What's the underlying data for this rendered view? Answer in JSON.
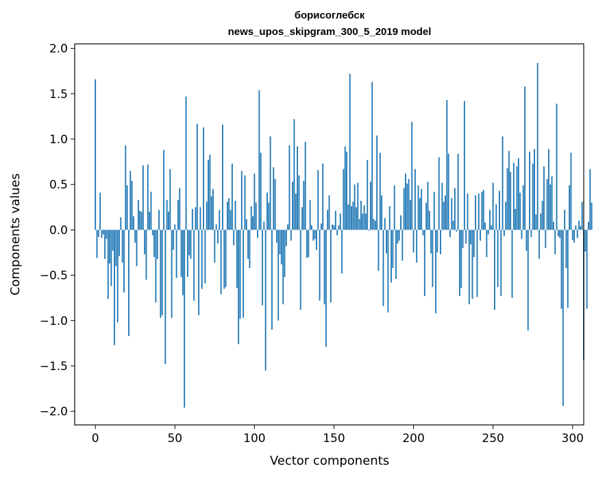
{
  "chart_data": {
    "type": "bar",
    "title_line1": "борисоглебск",
    "title_line2": "news_upos_skipgram_300_5_2019 model",
    "xlabel": "Vector components",
    "ylabel": "Components values",
    "xlim": [
      -13,
      307
    ],
    "ylim": [
      -2.15,
      2.05
    ],
    "xticks": [
      0,
      50,
      100,
      150,
      200,
      250,
      300
    ],
    "xtick_labels": [
      "0",
      "50",
      "100",
      "150",
      "200",
      "250",
      "300"
    ],
    "yticks": [
      -2.0,
      -1.5,
      -1.0,
      -0.5,
      0.0,
      0.5,
      1.0,
      1.5,
      2.0
    ],
    "ytick_labels": [
      "−2.0",
      "−1.5",
      "−1.0",
      "−0.5",
      "0.0",
      "0.5",
      "1.0",
      "1.5",
      "2.0"
    ],
    "bar_color": "#1f77b4",
    "grid": false,
    "values": [
      1.66,
      -0.31,
      -0.08,
      0.41,
      -0.09,
      -0.05,
      -0.32,
      -0.1,
      -0.76,
      -0.37,
      -0.62,
      -0.23,
      -1.27,
      -0.4,
      -1.02,
      -0.29,
      0.14,
      -0.36,
      -0.69,
      0.93,
      0.49,
      -1.17,
      0.65,
      0.54,
      0.15,
      -0.14,
      -0.4,
      0.33,
      0.21,
      0.2,
      0.71,
      -0.27,
      -0.55,
      0.72,
      0.2,
      0.42,
      -0.06,
      -0.3,
      -0.8,
      -0.32,
      0.22,
      -0.97,
      -0.94,
      0.88,
      -1.48,
      0.33,
      0.2,
      0.67,
      -0.97,
      -0.22,
      0.06,
      -0.53,
      0.33,
      0.46,
      -0.52,
      -0.72,
      -1.96,
      1.47,
      -0.52,
      -0.28,
      -0.32,
      0.23,
      -0.78,
      0.25,
      1.17,
      -0.94,
      0.25,
      -0.65,
      1.13,
      -0.59,
      0.31,
      0.77,
      0.83,
      0.37,
      0.45,
      -0.36,
      0.06,
      -0.15,
      0.22,
      -0.71,
      1.16,
      -0.65,
      -0.63,
      0.31,
      0.35,
      0.22,
      0.73,
      -0.17,
      0.32,
      -0.64,
      -1.26,
      -0.98,
      0.65,
      -0.97,
      0.6,
      0.12,
      -0.32,
      -0.42,
      0.26,
      0.15,
      0.62,
      0.3,
      -0.09,
      1.54,
      0.85,
      -0.83,
      0.09,
      -1.55,
      0.41,
      0.3,
      1.03,
      -1.1,
      0.69,
      0.56,
      -0.14,
      -1.0,
      -0.27,
      -0.38,
      -0.82,
      -0.52,
      -0.18,
      0.06,
      0.93,
      -0.12,
      0.53,
      1.22,
      0.4,
      0.92,
      0.6,
      -0.88,
      0.25,
      0.54,
      0.97,
      -0.31,
      -0.3,
      0.33,
      0.05,
      -0.12,
      -0.1,
      -0.22,
      0.66,
      -0.78,
      0.07,
      0.73,
      -0.82,
      -1.29,
      0.22,
      0.38,
      -0.8,
      0.06,
      0.05,
      0.21,
      -0.06,
      0.05,
      0.18,
      -0.48,
      0.67,
      0.92,
      0.86,
      0.28,
      1.72,
      0.26,
      0.31,
      0.5,
      0.25,
      0.52,
      0.12,
      0.32,
      0.18,
      0.27,
      0.18,
      0.77,
      -0.01,
      0.53,
      1.63,
      0.12,
      0.1,
      1.04,
      -0.45,
      0.85,
      0.38,
      -0.84,
      0.13,
      -0.26,
      -0.91,
      0.26,
      -0.58,
      -0.42,
      0.49,
      -0.54,
      -0.15,
      -0.12,
      0.16,
      -0.34,
      0.46,
      0.62,
      0.51,
      0.56,
      0.33,
      1.19,
      -0.25,
      0.67,
      -0.36,
      0.49,
      0.35,
      0.45,
      -0.06,
      -0.73,
      0.3,
      0.53,
      0.21,
      -0.26,
      -0.63,
      0.42,
      -0.92,
      -0.25,
      0.8,
      -0.27,
      0.52,
      0.31,
      0.38,
      1.43,
      0.84,
      -0.08,
      0.35,
      0.1,
      0.46,
      -0.02,
      0.84,
      -0.73,
      -0.64,
      -0.2,
      1.42,
      -0.15,
      0.4,
      -0.82,
      -0.16,
      -0.76,
      -0.3,
      0.38,
      -0.74,
      0.4,
      -0.12,
      0.42,
      0.44,
      0.08,
      -0.3,
      -0.05,
      0.22,
      0.05,
      0.52,
      -0.88,
      0.28,
      -0.63,
      0.43,
      -0.73,
      1.03,
      -0.07,
      0.31,
      0.68,
      0.87,
      0.64,
      -0.75,
      0.74,
      0.23,
      0.7,
      0.79,
      0.41,
      -0.1,
      0.49,
      1.58,
      -0.23,
      -1.11,
      0.86,
      -0.08,
      0.73,
      0.89,
      0.17,
      1.84,
      -0.32,
      0.18,
      0.32,
      0.7,
      -0.2,
      0.56,
      0.89,
      0.5,
      0.59,
      0.09,
      -0.27,
      1.39,
      -0.07,
      -0.09,
      -0.87,
      -1.94,
      0.22,
      -0.42,
      -0.86,
      0.49,
      0.85,
      -0.11,
      -0.14,
      0.05,
      -0.09,
      0.1,
      0.04,
      0.31,
      -1.43,
      -0.24,
      -0.87,
      0.09,
      0.67,
      0.3
    ]
  }
}
